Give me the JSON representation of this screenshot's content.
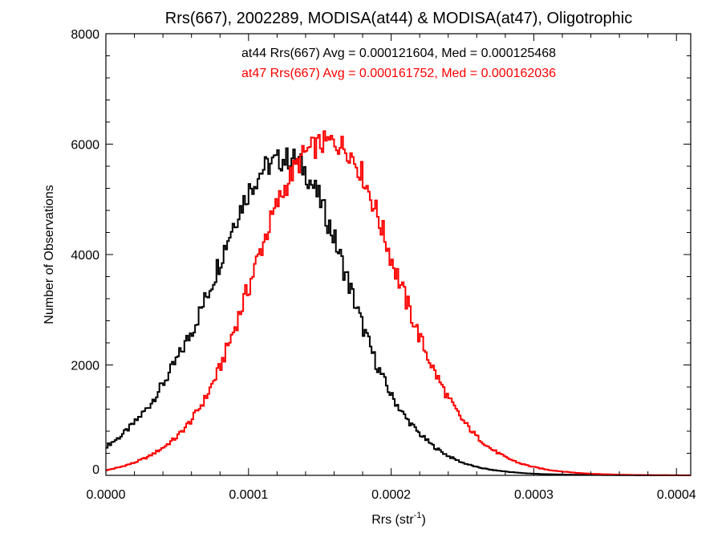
{
  "chart_data": {
    "type": "line",
    "step": true,
    "title": "Rrs(667), 2002289, MODISA(at44) & MODISA(at47), Oligotrophic",
    "xlabel": "Rrs (str",
    "xlabel_sup": "-1",
    "xlabel_end": ")",
    "ylabel": "Number of Observations",
    "xlim": [
      0,
      0.00041
    ],
    "ylim": [
      0,
      8000
    ],
    "x_ticks": [
      0,
      0.0001,
      0.0002,
      0.0003,
      0.0004
    ],
    "x_tick_labels": [
      "0.0000",
      "0.0001",
      "0.0002",
      "0.0003",
      "0.0004"
    ],
    "y_ticks": [
      0,
      2000,
      4000,
      6000,
      8000
    ],
    "y_tick_labels": [
      "0",
      "2000",
      "4000",
      "6000",
      "8000"
    ],
    "annotations": [
      {
        "text": "at44 Rrs(667) Avg = 0.000121604, Med = 0.000125468",
        "color": "#000000"
      },
      {
        "text": "at47 Rrs(667) Avg = 0.000161752, Med = 0.000162036",
        "color": "#ff0000"
      }
    ],
    "series": [
      {
        "color": "#000000",
        "x": [
          0,
          1e-05,
          2e-05,
          3e-05,
          4e-05,
          5e-05,
          6e-05,
          7e-05,
          8e-05,
          9e-05,
          0.0001,
          0.00011,
          0.00012,
          0.00013,
          0.000135,
          0.00014,
          0.00015,
          0.00016,
          0.00017,
          0.00018,
          0.00019,
          0.0002,
          0.00021,
          0.00022,
          0.00023,
          0.00024,
          0.00025,
          0.00026,
          0.00027,
          0.00028,
          0.00029,
          0.0003,
          0.00031,
          0.00032,
          0.00033,
          0.00034,
          0.00035,
          0.00036,
          0.00038,
          0.0004,
          0.00041
        ],
        "values": [
          520,
          700,
          950,
          1250,
          1650,
          2100,
          2600,
          3200,
          3900,
          4600,
          5150,
          5550,
          5700,
          5750,
          5700,
          5500,
          5000,
          4300,
          3500,
          2700,
          2000,
          1450,
          1050,
          750,
          520,
          350,
          230,
          150,
          100,
          70,
          45,
          30,
          20,
          15,
          10,
          8,
          6,
          4,
          2,
          1,
          0
        ]
      },
      {
        "color": "#ff0000",
        "x": [
          0,
          1e-05,
          2e-05,
          3e-05,
          4e-05,
          5e-05,
          6e-05,
          7e-05,
          8e-05,
          9e-05,
          0.0001,
          0.00011,
          0.00012,
          0.00013,
          0.00014,
          0.00015,
          0.00016,
          0.00017,
          0.00018,
          0.00019,
          0.0002,
          0.00021,
          0.00022,
          0.00023,
          0.00024,
          0.00025,
          0.00026,
          0.00027,
          0.00028,
          0.00029,
          0.0003,
          0.00031,
          0.00032,
          0.00033,
          0.00034,
          0.00035,
          0.00036,
          0.00037,
          0.00038,
          0.00039,
          0.0004,
          0.00041
        ],
        "values": [
          90,
          150,
          230,
          340,
          500,
          700,
          1000,
          1400,
          1950,
          2650,
          3400,
          4200,
          4900,
          5450,
          5850,
          6000,
          6050,
          5900,
          5450,
          4750,
          3950,
          3200,
          2500,
          1900,
          1400,
          1000,
          700,
          480,
          330,
          220,
          150,
          100,
          70,
          45,
          30,
          20,
          12,
          8,
          5,
          3,
          2,
          1
        ]
      }
    ]
  }
}
